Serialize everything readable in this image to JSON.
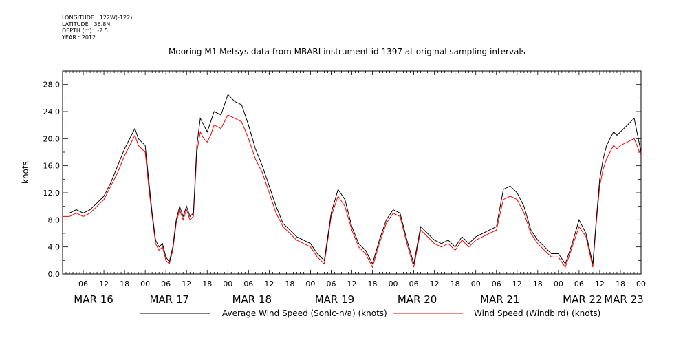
{
  "metadata": {
    "longitude": "LONGITUDE : 122W(-122)",
    "latitude": "LATITUDE : 36.8N",
    "depth": "DEPTH (m) : -2.5",
    "year": "YEAR : 2012"
  },
  "chart_data": {
    "type": "line",
    "title": "Mooring M1 Metsys data from MBARI instrument id 1397 at original sampling intervals",
    "ylabel": "knots",
    "ylim": [
      0,
      30
    ],
    "xlim_hours": [
      0,
      168
    ],
    "y_ticks": [
      "0.0",
      "4.0",
      "8.0",
      "12.0",
      "16.0",
      "20.0",
      "24.0",
      "28.0"
    ],
    "x_hour_ticks": [
      "06",
      "12",
      "18",
      "00",
      "06",
      "12",
      "18",
      "00",
      "06",
      "12",
      "18",
      "00",
      "06",
      "12",
      "18",
      "00",
      "06",
      "12",
      "18",
      "00",
      "06",
      "12",
      "18",
      "00",
      "06",
      "12",
      "18",
      "00"
    ],
    "x_day_labels": [
      {
        "label": "MAR 16",
        "at_hour": 9
      },
      {
        "label": "MAR 17",
        "at_hour": 31
      },
      {
        "label": "MAR 18",
        "at_hour": 55
      },
      {
        "label": "MAR 19",
        "at_hour": 79
      },
      {
        "label": "MAR 20",
        "at_hour": 103
      },
      {
        "label": "MAR 21",
        "at_hour": 127
      },
      {
        "label": "MAR 22",
        "at_hour": 151
      },
      {
        "label": "MAR 23",
        "at_hour": 163
      }
    ],
    "series": [
      {
        "name": "Average Wind Speed (Sonic-n/a) (knots)",
        "color": "#000000",
        "x": [
          0,
          2,
          4,
          6,
          8,
          10,
          12,
          14,
          16,
          18,
          20,
          21,
          22,
          23,
          24,
          25,
          26,
          27,
          28,
          29,
          30,
          31,
          32,
          33,
          34,
          35,
          36,
          37,
          38,
          39,
          40,
          41,
          42,
          43,
          44,
          46,
          48,
          50,
          52,
          54,
          56,
          58,
          60,
          62,
          64,
          66,
          68,
          70,
          72,
          74,
          76,
          78,
          80,
          82,
          84,
          86,
          88,
          90,
          92,
          94,
          96,
          98,
          100,
          102,
          104,
          106,
          108,
          110,
          112,
          114,
          116,
          118,
          120,
          122,
          124,
          126,
          128,
          130,
          132,
          134,
          136,
          138,
          140,
          142,
          144,
          146,
          148,
          150,
          152,
          154,
          155,
          156,
          157,
          158,
          159,
          160,
          161,
          162,
          164,
          166,
          168
        ],
        "y": [
          9.0,
          9.0,
          9.5,
          9.0,
          9.5,
          10.5,
          11.5,
          13.5,
          16.0,
          18.5,
          20.5,
          21.5,
          20.0,
          19.5,
          19.0,
          14.0,
          9.0,
          5.0,
          4.0,
          4.5,
          2.5,
          1.8,
          4.0,
          8.0,
          10.0,
          8.5,
          10.0,
          8.5,
          9.0,
          19.0,
          23.0,
          22.0,
          21.0,
          22.5,
          24.0,
          23.5,
          26.5,
          25.5,
          25.0,
          22.0,
          18.5,
          16.0,
          13.0,
          10.0,
          7.5,
          6.5,
          5.5,
          5.0,
          4.5,
          3.0,
          2.0,
          9.0,
          12.5,
          11.0,
          7.0,
          4.5,
          3.5,
          1.5,
          5.0,
          8.0,
          9.5,
          9.0,
          5.0,
          1.5,
          7.0,
          6.0,
          5.0,
          4.5,
          5.0,
          4.0,
          5.5,
          4.5,
          5.5,
          6.0,
          6.5,
          7.0,
          12.5,
          13.0,
          12.0,
          10.0,
          6.5,
          5.0,
          4.0,
          3.0,
          3.0,
          1.5,
          4.5,
          8.0,
          6.0,
          1.5,
          8.0,
          14.0,
          17.0,
          19.0,
          20.0,
          21.0,
          20.5,
          21.0,
          22.0,
          23.0,
          18.0
        ]
      },
      {
        "name": "Wind Speed (Windbird) (knots)",
        "color": "#ff0000",
        "x": [
          0,
          2,
          4,
          6,
          8,
          10,
          12,
          14,
          16,
          18,
          20,
          21,
          22,
          23,
          24,
          25,
          26,
          27,
          28,
          29,
          30,
          31,
          32,
          33,
          34,
          35,
          36,
          37,
          38,
          39,
          40,
          41,
          42,
          43,
          44,
          46,
          48,
          50,
          52,
          54,
          56,
          58,
          60,
          62,
          64,
          66,
          68,
          70,
          72,
          74,
          76,
          78,
          80,
          82,
          84,
          86,
          88,
          90,
          92,
          94,
          96,
          98,
          100,
          102,
          104,
          106,
          108,
          110,
          112,
          114,
          116,
          118,
          120,
          122,
          124,
          126,
          128,
          130,
          132,
          134,
          136,
          138,
          140,
          142,
          144,
          146,
          148,
          150,
          152,
          154,
          155,
          156,
          157,
          158,
          159,
          160,
          161,
          162,
          164,
          166,
          168
        ],
        "y": [
          8.5,
          8.5,
          9.0,
          8.5,
          9.0,
          10.0,
          11.0,
          13.0,
          15.0,
          17.5,
          19.5,
          20.5,
          19.0,
          18.5,
          18.0,
          13.0,
          8.5,
          4.5,
          3.5,
          4.0,
          2.0,
          1.5,
          3.5,
          7.5,
          9.5,
          8.0,
          9.5,
          8.0,
          8.5,
          18.0,
          21.0,
          20.0,
          19.5,
          20.5,
          22.0,
          21.5,
          23.5,
          23.0,
          22.5,
          20.0,
          17.0,
          15.0,
          12.0,
          9.0,
          7.0,
          6.0,
          5.0,
          4.5,
          4.0,
          2.5,
          1.5,
          8.5,
          11.5,
          10.0,
          6.5,
          4.0,
          3.0,
          1.0,
          4.5,
          7.5,
          9.0,
          8.5,
          4.5,
          1.0,
          6.5,
          5.5,
          4.5,
          4.0,
          4.5,
          3.5,
          5.0,
          4.0,
          5.0,
          5.5,
          6.0,
          6.5,
          11.0,
          11.5,
          11.0,
          9.0,
          6.0,
          4.5,
          3.5,
          2.5,
          2.5,
          1.0,
          4.0,
          7.0,
          5.5,
          1.0,
          7.5,
          13.0,
          15.5,
          17.0,
          18.0,
          19.0,
          18.5,
          19.0,
          19.5,
          20.0,
          17.5
        ]
      }
    ],
    "legend_position": "bottom",
    "grid": false
  }
}
